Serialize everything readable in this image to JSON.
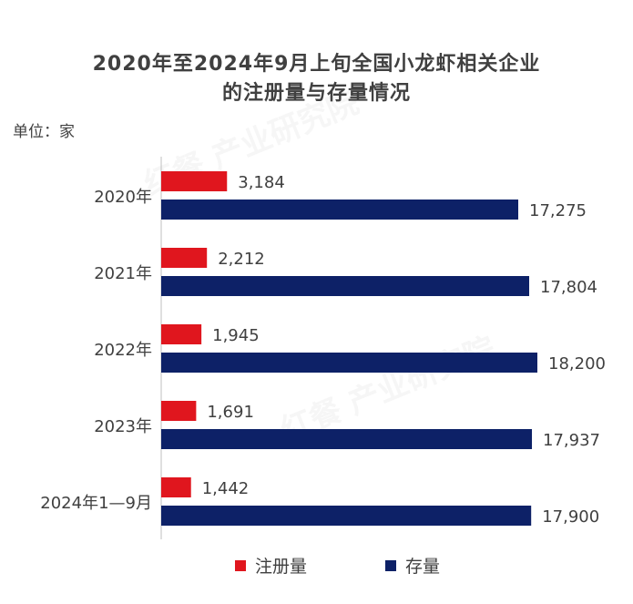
{
  "chart_data": {
    "type": "bar",
    "orientation": "horizontal",
    "title_line1": "2020年至2024年9月上旬全国小龙虾相关企业",
    "title_line2": "的注册量与存量情况",
    "unit_label": "单位：家",
    "categories": [
      "2020年",
      "2021年",
      "2022年",
      "2023年",
      "2024年1—9月"
    ],
    "series": [
      {
        "name": "注册量",
        "color": "#e0161e",
        "values": [
          3184,
          2212,
          1945,
          1691,
          1442
        ],
        "labels": [
          "3,184",
          "2,212",
          "1,945",
          "1,691",
          "1,442"
        ]
      },
      {
        "name": "存量",
        "color": "#0d2167",
        "values": [
          17275,
          17804,
          18200,
          17937,
          17900
        ],
        "labels": [
          "17,275",
          "17,804",
          "18,200",
          "17,937",
          "17,900"
        ]
      }
    ],
    "legend_position": "bottom",
    "xlim": [
      0,
      18200
    ],
    "grid": false
  },
  "watermark": "红餐 产业研究院"
}
